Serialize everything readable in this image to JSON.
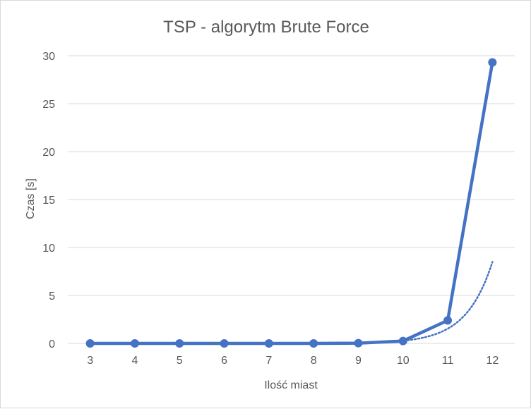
{
  "chart_data": {
    "type": "line",
    "title": "TSP - algorytm Brute Force",
    "xlabel": "Ilość miast",
    "ylabel": "Czas [s]",
    "categories": [
      "3",
      "4",
      "5",
      "6",
      "7",
      "8",
      "9",
      "10",
      "11",
      "12"
    ],
    "yticks": [
      "0",
      "5",
      "10",
      "15",
      "20",
      "25",
      "30"
    ],
    "ylim": [
      0,
      30
    ],
    "grid": true,
    "legend": "none",
    "series": [
      {
        "values": [
          0.0,
          0.0,
          0.0,
          0.0,
          0.0,
          0.0,
          0.03,
          0.25,
          2.4,
          29.3
        ],
        "color": "#4472C4",
        "style": "solid",
        "markers": true
      }
    ],
    "trendline": {
      "type": "exponential",
      "from": "9",
      "to": "12",
      "values": [
        0.05,
        0.2,
        1.3,
        8.5
      ],
      "color": "#4472C4",
      "style": "dotted"
    }
  }
}
